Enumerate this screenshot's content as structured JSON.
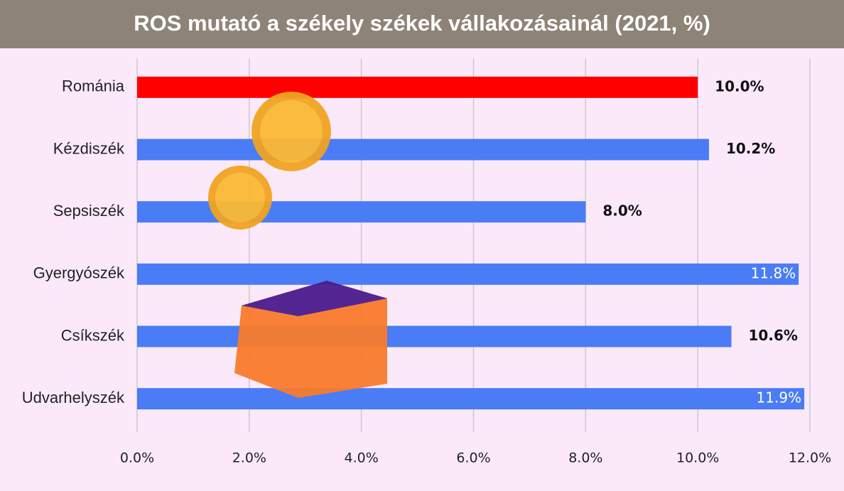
{
  "chart_data": {
    "type": "hbar",
    "title": "ROS mutató a székely székek vállakozásainál (2021, %)",
    "categories": [
      "Románia",
      "Kézdiszék",
      "Sepsiszék",
      "Gyergyószék",
      "Csíkszék",
      "Udvarhelyszék"
    ],
    "series": [
      {
        "colors": [
          "#ff0000",
          "#4a7cf5",
          "#4a7cf5",
          "#4a7cf5",
          "#4a7cf5",
          "#4a7cf5"
        ],
        "values": [
          10.0,
          10.2,
          8.0,
          11.8,
          10.6,
          11.9
        ],
        "value_labels": [
          "10.0%",
          "10.2%",
          "8.0%",
          "11.8%",
          "10.6%",
          "11.9%"
        ]
      }
    ],
    "xlim": [
      0,
      12
    ],
    "xticks": [
      {
        "value": 0,
        "label": "0.0%"
      },
      {
        "value": 2,
        "label": "2.0%"
      },
      {
        "value": 4,
        "label": "4.0%"
      },
      {
        "value": 6,
        "label": "6.0%"
      },
      {
        "value": 8,
        "label": "8.0%"
      },
      {
        "value": 10,
        "label": "10.0%"
      },
      {
        "value": 12,
        "label": "12.0%"
      }
    ],
    "grid": true
  }
}
